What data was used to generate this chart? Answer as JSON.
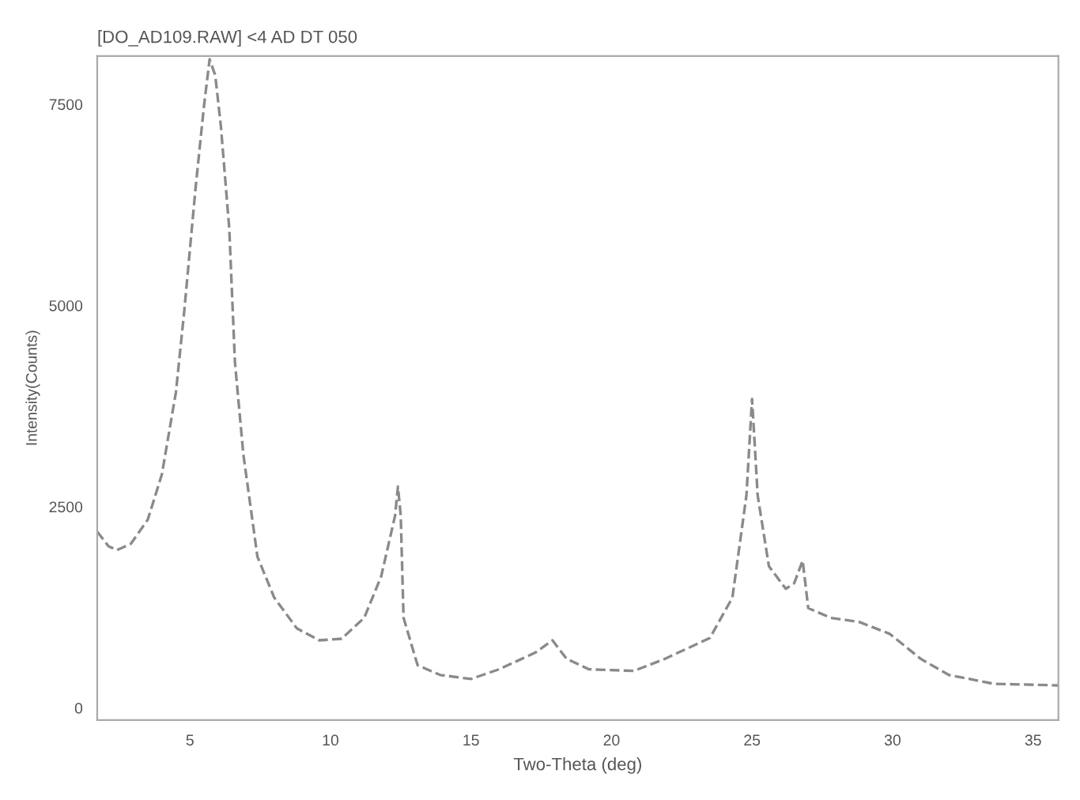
{
  "chart_data": {
    "type": "line",
    "title": "[DO_AD109.RAW] <4 AD DT 050",
    "xlabel": "Two-Theta (deg)",
    "ylabel": "Intensity(Counts)",
    "x": [
      1.7,
      2.1,
      2.4,
      2.9,
      3.5,
      4.0,
      4.5,
      4.8,
      5.2,
      5.5,
      5.7,
      5.9,
      6.1,
      6.4,
      6.6,
      6.9,
      7.4,
      8.0,
      8.8,
      9.6,
      10.4,
      11.2,
      11.8,
      12.3,
      12.4,
      12.5,
      12.6,
      13.1,
      13.9,
      15.0,
      16.0,
      17.3,
      17.9,
      18.4,
      19.2,
      20.8,
      21.9,
      23.5,
      24.3,
      24.8,
      25.0,
      25.2,
      25.6,
      26.2,
      26.5,
      26.8,
      27.0,
      27.8,
      28.8,
      29.9,
      31.0,
      32.0,
      33.6,
      35.9
    ],
    "series": [
      {
        "color": "#8a8a8a",
        "values": [
          2190,
          2010,
          1960,
          2040,
          2340,
          2900,
          3920,
          4940,
          6460,
          7480,
          8060,
          7860,
          7230,
          5950,
          4300,
          3150,
          1880,
          1370,
          990,
          840,
          860,
          1120,
          1630,
          2390,
          2750,
          2390,
          1120,
          530,
          410,
          360,
          480,
          690,
          840,
          610,
          480,
          460,
          610,
          870,
          1370,
          2640,
          3840,
          2640,
          1760,
          1480,
          1550,
          1830,
          1240,
          1120,
          1070,
          920,
          610,
          410,
          300,
          280
        ]
      }
    ],
    "xlim": [
      1.7,
      35.9
    ],
    "ylim": [
      -150,
      8100
    ],
    "xticks": [
      5,
      10,
      15,
      20,
      25,
      30,
      35
    ],
    "yticks": [
      0,
      2500,
      5000,
      7500
    ],
    "grid": false,
    "line_style": "dashed",
    "marker": "none"
  }
}
